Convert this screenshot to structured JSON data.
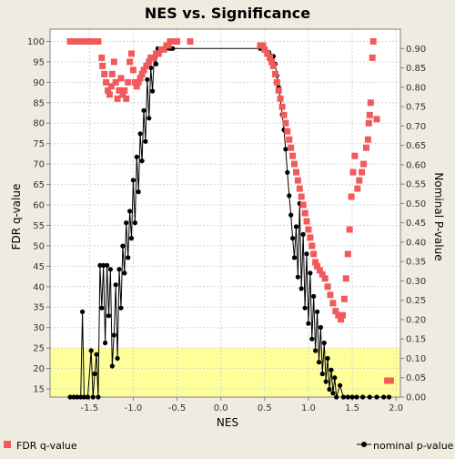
{
  "chart_data": {
    "type": "scatter",
    "title": "NES vs. Significance",
    "xlabel": "NES",
    "ylabel_left": "FDR q-value",
    "ylabel_right": "Nominal P-value",
    "xlim": [
      -1.95,
      2.05
    ],
    "ylim_left": [
      13,
      103
    ],
    "ylim_right": [
      0.0,
      0.95
    ],
    "x_ticks": [
      "-1.5",
      "-1.0",
      "-0.5",
      "0.0",
      "0.5",
      "1.0",
      "1.5",
      "2.0"
    ],
    "x_tick_values": [
      -1.5,
      -1.0,
      -0.5,
      0.0,
      0.5,
      1.0,
      1.5,
      2.0
    ],
    "left_ticks": [
      "15",
      "20",
      "25",
      "30",
      "35",
      "40",
      "45",
      "50",
      "55",
      "60",
      "65",
      "70",
      "75",
      "80",
      "85",
      "90",
      "95",
      "100"
    ],
    "left_tick_values": [
      15,
      20,
      25,
      30,
      35,
      40,
      45,
      50,
      55,
      60,
      65,
      70,
      75,
      80,
      85,
      90,
      95,
      100
    ],
    "right_ticks": [
      "0.00",
      "0.05",
      "0.10",
      "0.15",
      "0.20",
      "0.25",
      "0.30",
      "0.35",
      "0.40",
      "0.45",
      "0.50",
      "0.55",
      "0.60",
      "0.65",
      "0.70",
      "0.75",
      "0.80",
      "0.85",
      "0.90"
    ],
    "right_tick_values": [
      0.0,
      0.05,
      0.1,
      0.15,
      0.2,
      0.25,
      0.3,
      0.35,
      0.4,
      0.45,
      0.5,
      0.55,
      0.6,
      0.65,
      0.7,
      0.75,
      0.8,
      0.85,
      0.9
    ],
    "highlight_band": {
      "from": 13,
      "to": 25,
      "color": "#ffff99"
    },
    "grid": true,
    "legend_placement": "bottom",
    "series": [
      {
        "name": "FDR q-value",
        "axis": "left",
        "marker": "square",
        "color": "#f05a5a",
        "points": [
          [
            -1.72,
            100
          ],
          [
            -1.68,
            100
          ],
          [
            -1.64,
            100
          ],
          [
            -1.6,
            100
          ],
          [
            -1.56,
            100
          ],
          [
            -1.52,
            100
          ],
          [
            -1.48,
            100
          ],
          [
            -1.44,
            100
          ],
          [
            -1.4,
            100
          ],
          [
            -1.36,
            96
          ],
          [
            -1.35,
            94
          ],
          [
            -1.33,
            92
          ],
          [
            -1.31,
            90
          ],
          [
            -1.29,
            88
          ],
          [
            -1.27,
            87
          ],
          [
            -1.25,
            89
          ],
          [
            -1.24,
            92
          ],
          [
            -1.22,
            95
          ],
          [
            -1.2,
            90
          ],
          [
            -1.18,
            86
          ],
          [
            -1.16,
            88
          ],
          [
            -1.14,
            91
          ],
          [
            -1.12,
            87
          ],
          [
            -1.1,
            88
          ],
          [
            -1.08,
            86
          ],
          [
            -1.06,
            90
          ],
          [
            -1.04,
            95
          ],
          [
            -1.02,
            97
          ],
          [
            -1.0,
            93
          ],
          [
            -0.98,
            90
          ],
          [
            -0.96,
            89
          ],
          [
            -0.94,
            90
          ],
          [
            -0.92,
            91
          ],
          [
            -0.9,
            92
          ],
          [
            -0.88,
            93
          ],
          [
            -0.85,
            94
          ],
          [
            -0.82,
            95
          ],
          [
            -0.8,
            96
          ],
          [
            -0.77,
            96
          ],
          [
            -0.74,
            97
          ],
          [
            -0.71,
            97
          ],
          [
            -0.68,
            98
          ],
          [
            -0.65,
            98
          ],
          [
            -0.62,
            99
          ],
          [
            -0.6,
            99
          ],
          [
            -0.58,
            100
          ],
          [
            -0.55,
            100
          ],
          [
            -0.5,
            100
          ],
          [
            -0.35,
            100
          ],
          [
            0.45,
            99
          ],
          [
            0.48,
            99
          ],
          [
            0.5,
            98
          ],
          [
            0.53,
            97
          ],
          [
            0.56,
            96
          ],
          [
            0.58,
            95
          ],
          [
            0.6,
            94
          ],
          [
            0.62,
            92
          ],
          [
            0.64,
            90
          ],
          [
            0.66,
            88
          ],
          [
            0.68,
            86
          ],
          [
            0.7,
            84
          ],
          [
            0.72,
            82
          ],
          [
            0.74,
            80
          ],
          [
            0.76,
            78
          ],
          [
            0.78,
            76
          ],
          [
            0.8,
            74
          ],
          [
            0.82,
            72
          ],
          [
            0.84,
            70
          ],
          [
            0.86,
            68
          ],
          [
            0.88,
            66
          ],
          [
            0.9,
            64
          ],
          [
            0.92,
            62
          ],
          [
            0.94,
            60
          ],
          [
            0.96,
            58
          ],
          [
            0.98,
            56
          ],
          [
            1.0,
            54
          ],
          [
            1.02,
            52
          ],
          [
            1.04,
            50
          ],
          [
            1.06,
            48
          ],
          [
            1.08,
            46
          ],
          [
            1.1,
            45
          ],
          [
            1.13,
            44
          ],
          [
            1.16,
            43
          ],
          [
            1.19,
            42
          ],
          [
            1.22,
            40
          ],
          [
            1.25,
            38
          ],
          [
            1.28,
            36
          ],
          [
            1.31,
            34
          ],
          [
            1.34,
            33
          ],
          [
            1.37,
            32
          ],
          [
            1.39,
            33
          ],
          [
            1.41,
            37
          ],
          [
            1.43,
            42
          ],
          [
            1.45,
            48
          ],
          [
            1.47,
            54
          ],
          [
            1.49,
            62
          ],
          [
            1.51,
            68
          ],
          [
            1.53,
            72
          ],
          [
            1.56,
            64
          ],
          [
            1.58,
            66
          ],
          [
            1.61,
            68
          ],
          [
            1.63,
            70
          ],
          [
            1.66,
            74
          ],
          [
            1.68,
            76
          ],
          [
            1.69,
            80
          ],
          [
            1.7,
            82
          ],
          [
            1.71,
            85
          ],
          [
            1.73,
            96
          ],
          [
            1.74,
            100
          ],
          [
            1.78,
            81
          ],
          [
            1.9,
            17
          ],
          [
            1.94,
            17
          ]
        ]
      },
      {
        "name": "nominal p-value",
        "axis": "right",
        "marker": "circle-line",
        "color": "#000000",
        "points": [
          [
            -1.72,
            0.0
          ],
          [
            -1.68,
            0.0
          ],
          [
            -1.64,
            0.0
          ],
          [
            -1.6,
            0.0
          ],
          [
            -1.58,
            0.22
          ],
          [
            -1.56,
            0.0
          ],
          [
            -1.52,
            0.0
          ],
          [
            -1.48,
            0.12
          ],
          [
            -1.46,
            0.0
          ],
          [
            -1.44,
            0.06
          ],
          [
            -1.42,
            0.11
          ],
          [
            -1.4,
            0.0
          ],
          [
            -1.38,
            0.34
          ],
          [
            -1.36,
            0.23
          ],
          [
            -1.34,
            0.34
          ],
          [
            -1.32,
            0.14
          ],
          [
            -1.3,
            0.34
          ],
          [
            -1.28,
            0.21
          ],
          [
            -1.26,
            0.33
          ],
          [
            -1.24,
            0.08
          ],
          [
            -1.22,
            0.16
          ],
          [
            -1.2,
            0.29
          ],
          [
            -1.18,
            0.1
          ],
          [
            -1.16,
            0.33
          ],
          [
            -1.14,
            0.23
          ],
          [
            -1.12,
            0.39
          ],
          [
            -1.1,
            0.32
          ],
          [
            -1.08,
            0.45
          ],
          [
            -1.06,
            0.36
          ],
          [
            -1.04,
            0.48
          ],
          [
            -1.02,
            0.41
          ],
          [
            -1.0,
            0.56
          ],
          [
            -0.98,
            0.45
          ],
          [
            -0.96,
            0.62
          ],
          [
            -0.94,
            0.53
          ],
          [
            -0.92,
            0.68
          ],
          [
            -0.9,
            0.61
          ],
          [
            -0.88,
            0.74
          ],
          [
            -0.86,
            0.66
          ],
          [
            -0.84,
            0.82
          ],
          [
            -0.82,
            0.72
          ],
          [
            -0.8,
            0.85
          ],
          [
            -0.78,
            0.79
          ],
          [
            -0.76,
            0.88
          ],
          [
            -0.74,
            0.86
          ],
          [
            -0.72,
            0.9
          ],
          [
            -0.7,
            0.89
          ],
          [
            -0.66,
            0.9
          ],
          [
            -0.62,
            0.9
          ],
          [
            -0.58,
            0.9
          ],
          [
            -0.55,
            0.9
          ],
          [
            0.45,
            0.9
          ],
          [
            0.5,
            0.9
          ],
          [
            0.55,
            0.89
          ],
          [
            0.6,
            0.88
          ],
          [
            0.62,
            0.86
          ],
          [
            0.64,
            0.83
          ],
          [
            0.66,
            0.8
          ],
          [
            0.68,
            0.77
          ],
          [
            0.7,
            0.73
          ],
          [
            0.72,
            0.69
          ],
          [
            0.74,
            0.64
          ],
          [
            0.76,
            0.58
          ],
          [
            0.78,
            0.52
          ],
          [
            0.8,
            0.47
          ],
          [
            0.82,
            0.41
          ],
          [
            0.84,
            0.36
          ],
          [
            0.86,
            0.44
          ],
          [
            0.88,
            0.31
          ],
          [
            0.9,
            0.5
          ],
          [
            0.92,
            0.28
          ],
          [
            0.94,
            0.42
          ],
          [
            0.96,
            0.23
          ],
          [
            0.98,
            0.37
          ],
          [
            1.0,
            0.19
          ],
          [
            1.02,
            0.32
          ],
          [
            1.04,
            0.15
          ],
          [
            1.06,
            0.26
          ],
          [
            1.08,
            0.12
          ],
          [
            1.1,
            0.22
          ],
          [
            1.12,
            0.09
          ],
          [
            1.14,
            0.18
          ],
          [
            1.16,
            0.06
          ],
          [
            1.18,
            0.14
          ],
          [
            1.2,
            0.04
          ],
          [
            1.22,
            0.1
          ],
          [
            1.24,
            0.02
          ],
          [
            1.26,
            0.07
          ],
          [
            1.28,
            0.01
          ],
          [
            1.3,
            0.05
          ],
          [
            1.32,
            0.0
          ],
          [
            1.36,
            0.03
          ],
          [
            1.4,
            0.0
          ],
          [
            1.45,
            0.0
          ],
          [
            1.5,
            0.0
          ],
          [
            1.55,
            0.0
          ],
          [
            1.62,
            0.0
          ],
          [
            1.7,
            0.0
          ],
          [
            1.78,
            0.0
          ],
          [
            1.86,
            0.0
          ],
          [
            1.92,
            0.0
          ]
        ]
      }
    ]
  }
}
